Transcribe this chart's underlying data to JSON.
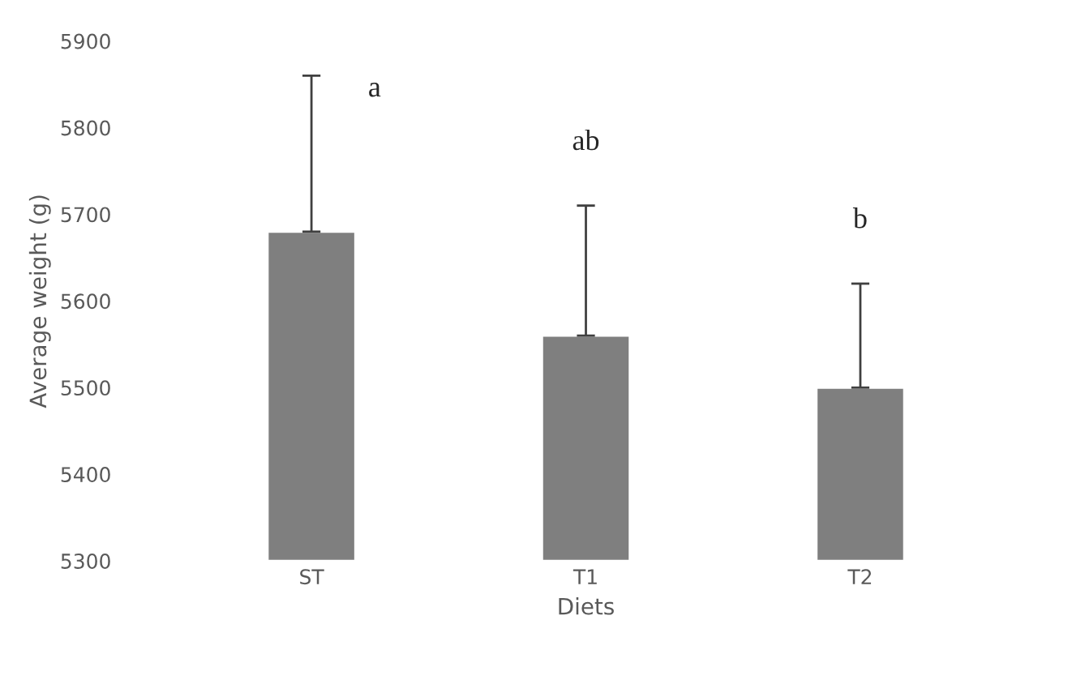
{
  "chart_data": {
    "type": "bar",
    "xlabel": "Diets",
    "ylabel": "Average weight (g)",
    "categories": [
      "ST",
      "T1",
      "T2"
    ],
    "values": [
      5680,
      5560,
      5500
    ],
    "errors": [
      [
        5680,
        5860
      ],
      [
        5560,
        5710
      ],
      [
        5500,
        5620
      ]
    ],
    "color": "#7f7f7f",
    "ylim": [
      5300,
      5900
    ],
    "yticks": [
      5300,
      5400,
      5500,
      5600,
      5700,
      5800,
      5900
    ],
    "grid": false,
    "annotations": [
      {
        "text": "a",
        "x": "ST",
        "y": 5860
      },
      {
        "text": "ab",
        "x": "T1",
        "y": 5710
      },
      {
        "text": "b",
        "x": "T2",
        "y": 5620
      }
    ]
  }
}
